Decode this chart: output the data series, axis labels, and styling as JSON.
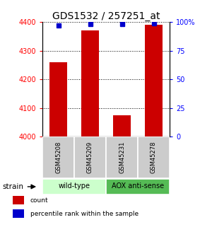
{
  "title": "GDS1532 / 257251_at",
  "samples": [
    "GSM45208",
    "GSM45209",
    "GSM45231",
    "GSM45278"
  ],
  "counts": [
    4260,
    4370,
    4075,
    4390
  ],
  "percentiles": [
    97,
    98,
    98,
    99
  ],
  "ylim_left": [
    4000,
    4400
  ],
  "ylim_right": [
    0,
    100
  ],
  "yticks_left": [
    4000,
    4100,
    4200,
    4300,
    4400
  ],
  "yticks_right": [
    0,
    25,
    50,
    75,
    100
  ],
  "ytick_labels_right": [
    "0",
    "25",
    "50",
    "75",
    "100%"
  ],
  "bar_color": "#cc0000",
  "dot_color": "#0000cc",
  "groups": [
    {
      "label": "wild-type",
      "samples": [
        0,
        1
      ],
      "color": "#ccffcc"
    },
    {
      "label": "AOX anti-sense",
      "samples": [
        2,
        3
      ],
      "color": "#55bb55"
    }
  ],
  "strain_label": "strain",
  "legend_items": [
    {
      "color": "#cc0000",
      "label": "count"
    },
    {
      "color": "#0000cc",
      "label": "percentile rank within the sample"
    }
  ],
  "sample_box_color": "#cccccc",
  "title_fontsize": 10,
  "tick_fontsize": 7,
  "bar_width": 0.55
}
